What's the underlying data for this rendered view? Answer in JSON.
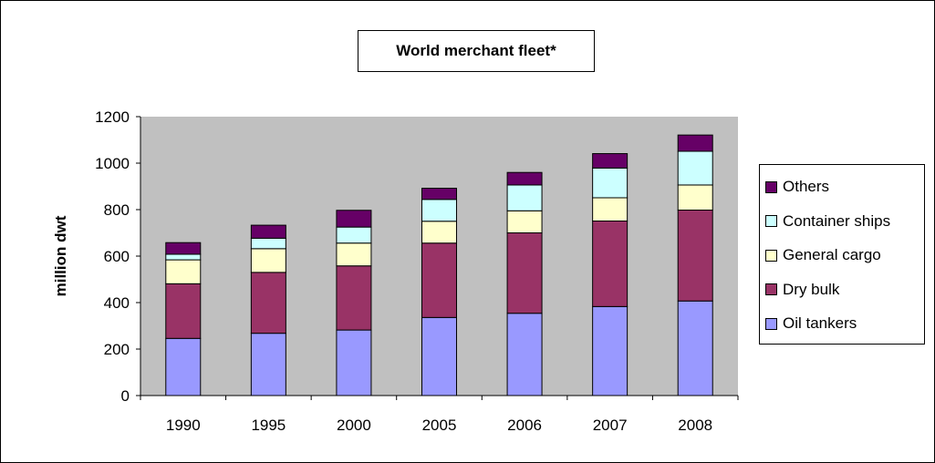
{
  "chart_data": {
    "type": "bar",
    "stacked": true,
    "title": "World merchant fleet*",
    "xlabel": "",
    "ylabel": "million dwt",
    "ylim": [
      0,
      1200
    ],
    "yticks": [
      0,
      200,
      400,
      600,
      800,
      1000,
      1200
    ],
    "grid": false,
    "legend_position": "right",
    "categories": [
      "1990",
      "1995",
      "2000",
      "2005",
      "2006",
      "2007",
      "2008"
    ],
    "series": [
      {
        "name": "Oil tankers",
        "color": "#9999ff",
        "values": [
          246,
          268,
          282,
          336,
          354,
          383,
          407
        ]
      },
      {
        "name": "Dry bulk",
        "color": "#993366",
        "values": [
          235,
          262,
          276,
          320,
          346,
          368,
          391
        ]
      },
      {
        "name": "General cargo",
        "color": "#ffffcc",
        "values": [
          103,
          102,
          98,
          94,
          95,
          100,
          108
        ]
      },
      {
        "name": "Container ships",
        "color": "#ccffff",
        "values": [
          24,
          45,
          69,
          94,
          111,
          128,
          145
        ]
      },
      {
        "name": "Others",
        "color": "#660066",
        "values": [
          50,
          56,
          72,
          48,
          54,
          62,
          70
        ]
      }
    ]
  },
  "colors": {
    "plot_background": "#c0c0c0"
  }
}
